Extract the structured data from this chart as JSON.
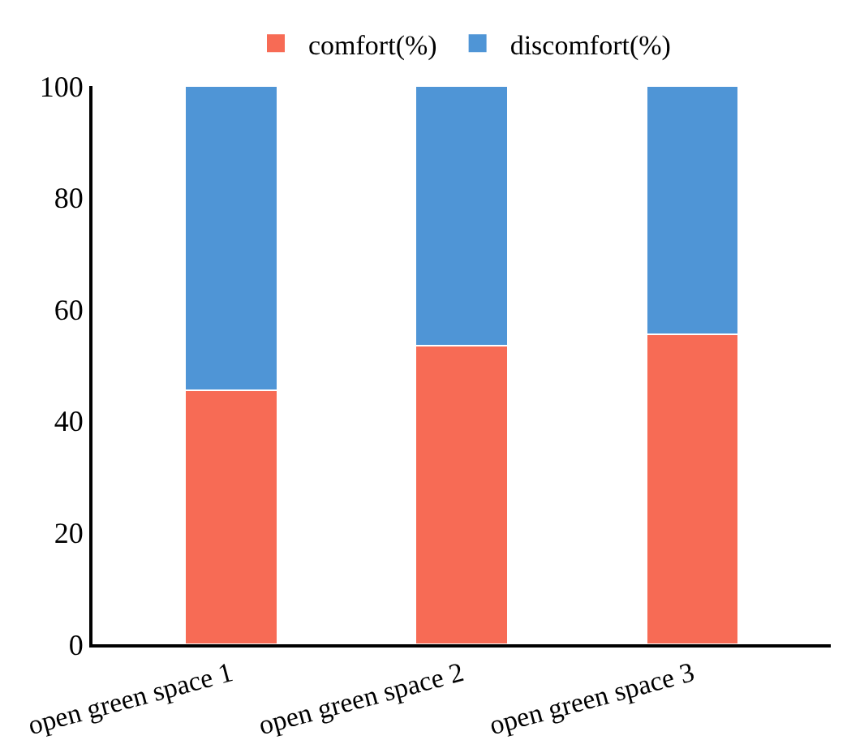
{
  "chart_data": {
    "type": "bar",
    "stacked": true,
    "categories": [
      "open green space 1",
      "open green space 2",
      "open green space 3"
    ],
    "series": [
      {
        "name": "comfort(%)",
        "color": "#f76b55",
        "values": [
          45.5,
          53.5,
          55.5
        ]
      },
      {
        "name": "discomfort(%)",
        "color": "#4f95d6",
        "values": [
          54.5,
          46.5,
          44.5
        ]
      }
    ],
    "ylim": [
      0,
      100
    ],
    "yticks": [
      0,
      20,
      40,
      60,
      80,
      100
    ],
    "grid": false,
    "legend": "top"
  }
}
